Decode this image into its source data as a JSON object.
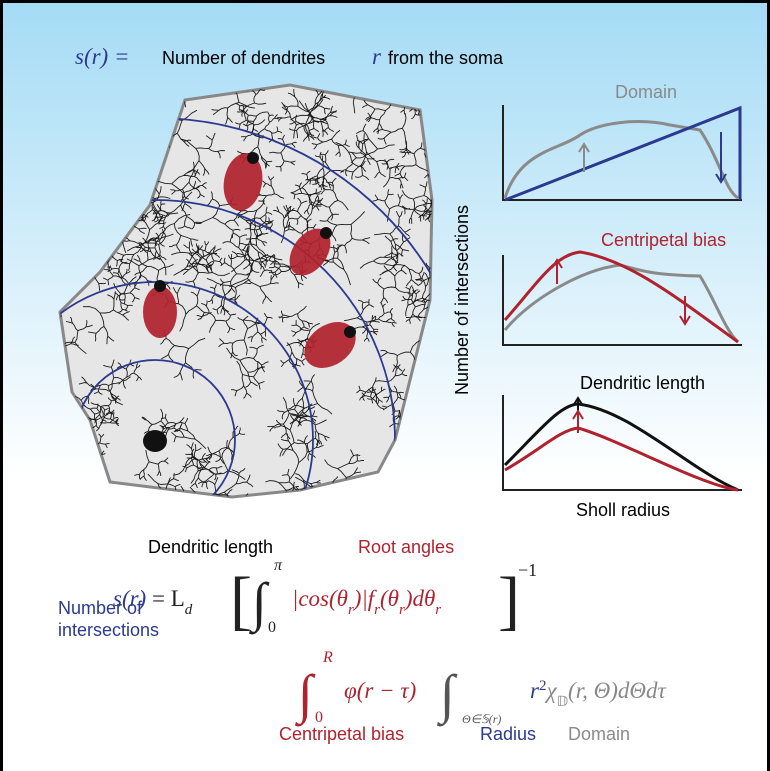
{
  "title": {
    "lhs": "s(r) =",
    "text1": "Number of dendrites",
    "r": "r",
    "text2": "from the soma"
  },
  "panels": [
    {
      "label": "Domain"
    },
    {
      "label": "Centripetal bias"
    },
    {
      "label": "Dendritic length"
    }
  ],
  "y_axis_label": "Number of intersections",
  "x_axis_label": "Sholl radius",
  "equation_labels": {
    "dendritic_length": "Dendritic length",
    "root_angles": "Root angles",
    "number_of_intersections": [
      "Number of",
      "intersections"
    ],
    "centripetal_bias": "Centripetal bias",
    "radius": "Radius",
    "domain": "Domain"
  },
  "equation1": {
    "lhs": "s(r)",
    "eq": "= L",
    "sub_d": "d",
    "lbracket": "[",
    "integral": "∫",
    "lower": "0",
    "upper": "π",
    "cos": "|cos(θ",
    "sub_r1": "r",
    "f": ")|f",
    "sub_r2": "r",
    "theta": "(θ",
    "sub_r3": "r",
    "dtheta": ")dθ",
    "sub_r4": "r",
    "rbracket": "]",
    "exponent": "−1"
  },
  "equation2": {
    "integral1": "∫",
    "lower1": "0",
    "upper1": "R",
    "phi": "φ(r − τ)",
    "integral2": "∫",
    "domain_sub": "Θ∈𝕊(r)",
    "r": "r",
    "sq": "2",
    "chi": "χ",
    "sub_D": "𝔻",
    "rest": "(r, Θ)dΘdτ"
  }
}
